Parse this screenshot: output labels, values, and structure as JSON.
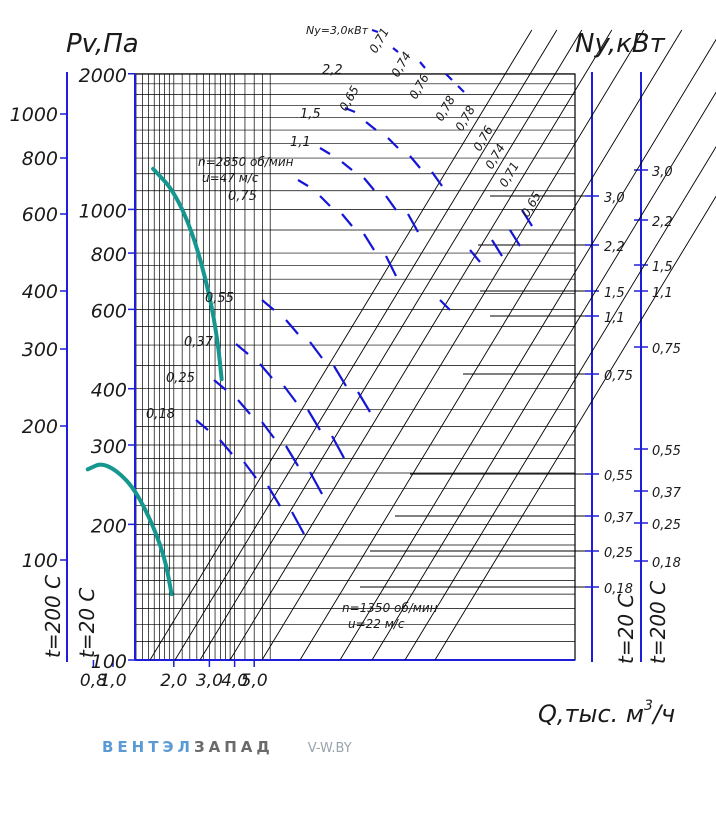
{
  "chart_data": {
    "type": "line",
    "axis_labels": {
      "pressure": "Pv,Па",
      "power": "Ny,кВт",
      "flow": "Q,тыс. м",
      "flow_sup": "3",
      "flow_tail": "/ч",
      "temp_hot": "t=200 C",
      "temp_cold": "t=20 C"
    },
    "x_ticks": [
      "0,8",
      "1,0",
      "2,0",
      "3,0",
      "4,0",
      "5,0"
    ],
    "x_tick_values": [
      0.8,
      1.0,
      2.0,
      3.0,
      4.0,
      5.0
    ],
    "main_y_ticks": [
      "2000",
      "1000",
      "800",
      "600",
      "400",
      "300",
      "200",
      "100"
    ],
    "main_y_tick_values": [
      2000,
      1000,
      800,
      600,
      400,
      300,
      200,
      100
    ],
    "hot_y_ticks": [
      "1000",
      "800",
      "600",
      "400",
      "300",
      "200",
      "100"
    ],
    "hot_y_tick_values": [
      1000,
      800,
      600,
      400,
      300,
      200,
      100
    ],
    "power_ticks_20": [
      "3,0",
      "2,2",
      "1,5",
      "1,1",
      "0,75",
      "0,55",
      "0,37",
      "0,25",
      "0,18"
    ],
    "power_ticks_200": [
      "3,0",
      "2,2",
      "1,5",
      "1,1",
      "0,75",
      "0,55",
      "0,37",
      "0,25",
      "0,18"
    ],
    "power_tick_values": [
      3.0,
      2.2,
      1.5,
      1.1,
      0.75,
      0.55,
      0.37,
      0.25,
      0.18
    ],
    "upper_power_labels": [
      "2,2",
      "1,5",
      "1,1",
      "0,75"
    ],
    "lower_power_labels": [
      "0,55",
      "0,37",
      "0,25",
      "0,18"
    ],
    "ny_title": "Ny=3,0кВт",
    "efficiency_labels": [
      "0,65",
      "0,71",
      "0,74",
      "0,76",
      "0,78"
    ],
    "operating_points": [
      {
        "label": "n=2850 об/мин",
        "sub": "u=47 м/с"
      },
      {
        "label": "n=1350 об/мин",
        "sub": "u=22 м/с"
      }
    ],
    "series": [
      {
        "values": [
          [
            1.58,
            1230
          ],
          [
            2.0,
            1100
          ],
          [
            2.5,
            880
          ],
          [
            3.0,
            650
          ],
          [
            3.3,
            510
          ],
          [
            3.45,
            420
          ]
        ]
      },
      {
        "values": [
          [
            0.75,
            265
          ],
          [
            0.9,
            275
          ],
          [
            1.2,
            250
          ],
          [
            1.5,
            210
          ],
          [
            1.8,
            170
          ],
          [
            1.95,
            140
          ]
        ]
      }
    ],
    "grid": true,
    "xlim": [
      0.7,
      6.0
    ],
    "ylim": [
      100,
      2000
    ],
    "colors": {
      "curve": "#15978f",
      "grid": "#000000",
      "axis": "#1d1ddb",
      "dash": "#1515d6"
    }
  },
  "branding": {
    "part1": "ВЕНТЭЛ",
    "part2": "ЗАПАД",
    "site": "V-W.BY"
  }
}
